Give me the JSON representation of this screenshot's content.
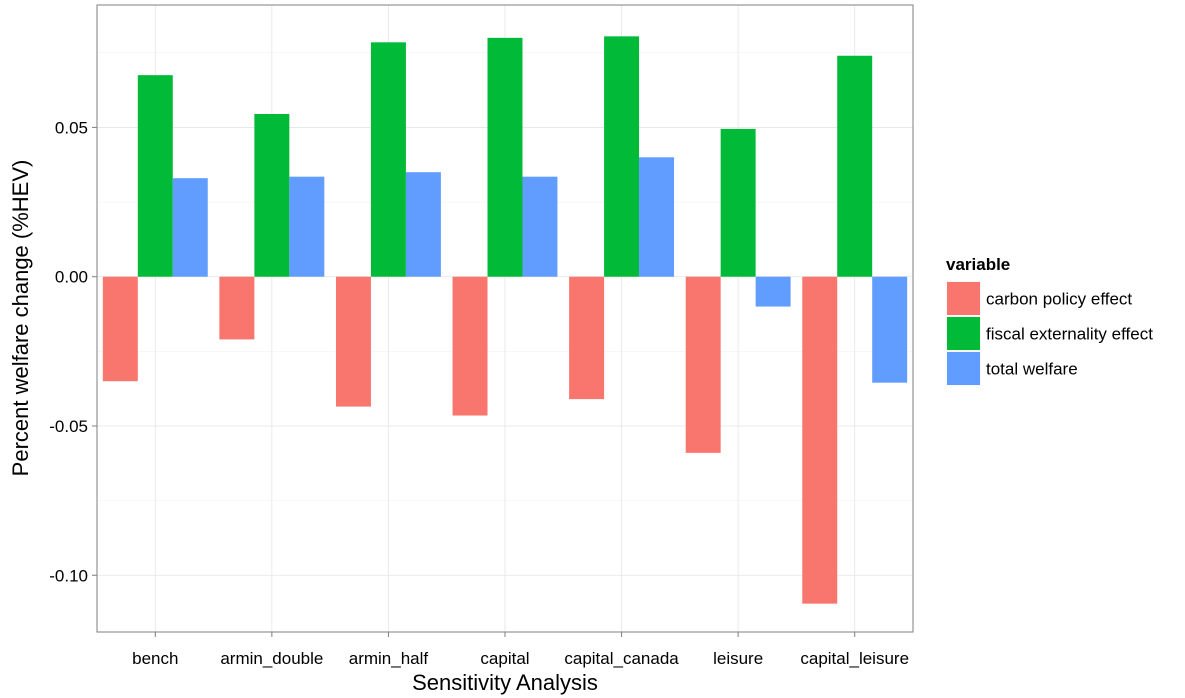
{
  "chart_data": {
    "type": "bar",
    "xlabel": "Sensitivity Analysis",
    "ylabel": "Percent welfare change (%HEV)",
    "categories": [
      "bench",
      "armin_double",
      "armin_half",
      "capital",
      "capital_canada",
      "leisure",
      "capital_leisure"
    ],
    "series": [
      {
        "name": "carbon policy effect",
        "color": "#F8766D",
        "values": [
          -0.035,
          -0.021,
          -0.0435,
          -0.0465,
          -0.041,
          -0.059,
          -0.1095
        ]
      },
      {
        "name": "fiscal externality effect",
        "color": "#00BA38",
        "values": [
          0.0675,
          0.0545,
          0.0785,
          0.08,
          0.0805,
          0.0495,
          0.074
        ]
      },
      {
        "name": "total welfare",
        "color": "#619CFF",
        "values": [
          0.033,
          0.0335,
          0.035,
          0.0335,
          0.04,
          -0.01,
          -0.0355
        ]
      }
    ],
    "ylim": [
      -0.119,
      0.091
    ],
    "yticks": [
      0.05,
      0.0,
      -0.05,
      -0.1
    ],
    "ytick_labels": [
      "0.05",
      "0.00",
      "-0.05",
      "-0.10"
    ],
    "legend": {
      "title": "variable",
      "position": "right"
    },
    "grid": true
  }
}
